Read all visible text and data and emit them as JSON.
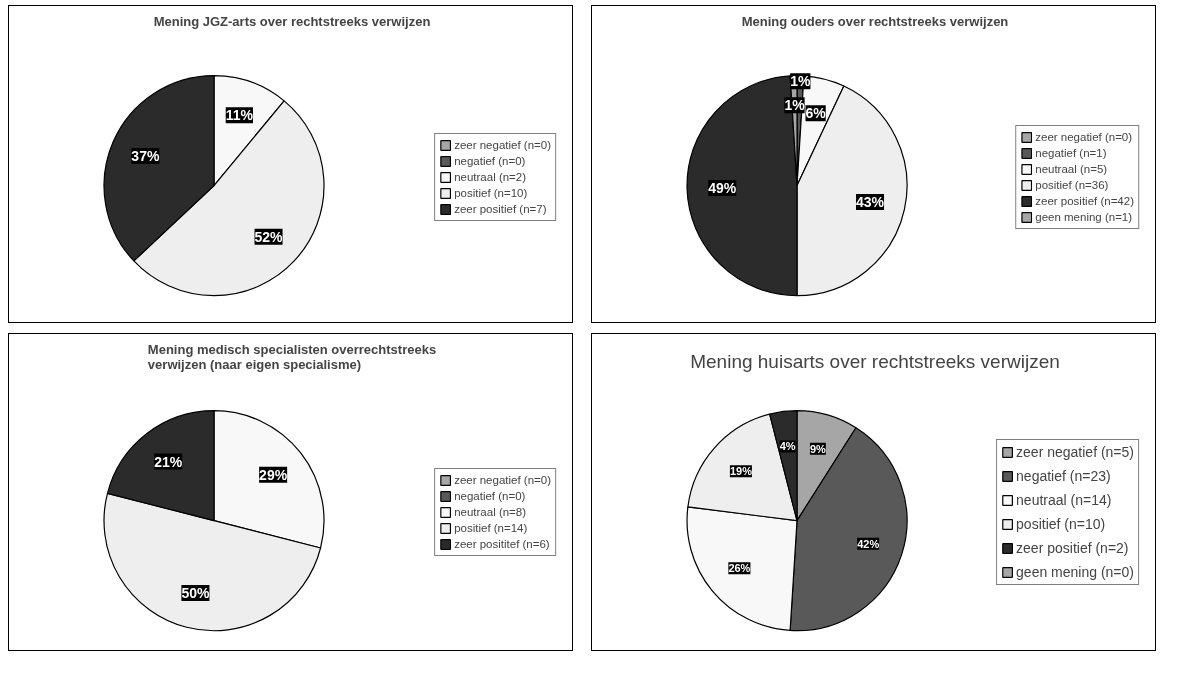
{
  "chart_data": [
    {
      "type": "pie",
      "title": "Mening JGZ-arts over rechtstreeks verwijzen",
      "categories": [
        "zeer negatief (n=0)",
        "negatief (n=0)",
        "neutraal (n=2)",
        "positief (n=10)",
        "zeer positief (n=7)"
      ],
      "values": [
        0,
        0,
        11,
        52,
        37
      ],
      "value_labels": [
        null,
        null,
        "11%",
        "52%",
        "37%"
      ],
      "colors": [
        "#a6a6a6",
        "#595959",
        "#f8f8f8",
        "#eeeeee",
        "#2b2b2b"
      ],
      "legend": "right"
    },
    {
      "type": "pie",
      "title": "Mening ouders over rechtstreeks verwijzen",
      "categories": [
        "zeer negatief (n=0)",
        "negatief (n=1)",
        "neutraal (n=5)",
        "positief (n=36)",
        "zeer positief (n=42)",
        "geen mening (n=1)"
      ],
      "values": [
        0,
        1,
        6,
        43,
        49,
        1
      ],
      "value_labels": [
        null,
        "1%",
        "6%",
        "43%",
        "49%",
        "1%"
      ],
      "colors": [
        "#a6a6a6",
        "#595959",
        "#f8f8f8",
        "#eeeeee",
        "#2b2b2b",
        "#a6a6a6"
      ],
      "legend": "right"
    },
    {
      "type": "pie",
      "title": "Mening medisch specialisten overrechtstreeks\nverwijzen (naar eigen specialisme)",
      "categories": [
        "zeer negatief (n=0)",
        "negatief (n=0)",
        "neutraal (n=8)",
        "positief (n=14)",
        "zeer posititef (n=6)"
      ],
      "values": [
        0,
        0,
        29,
        50,
        21
      ],
      "value_labels": [
        null,
        null,
        "29%",
        "50%",
        "21%"
      ],
      "colors": [
        "#a6a6a6",
        "#595959",
        "#f8f8f8",
        "#eeeeee",
        "#2b2b2b"
      ],
      "legend": "right"
    },
    {
      "type": "pie",
      "title": "Mening huisarts over rechtstreeks verwijzen",
      "categories": [
        "zeer negatief (n=5)",
        "negatief (n=23)",
        "neutraal (n=14)",
        "positief (n=10)",
        "zeer positief (n=2)",
        "geen mening (n=0)"
      ],
      "values": [
        9,
        42,
        26,
        19,
        4,
        0
      ],
      "value_labels": [
        "9%",
        "42%",
        "26%",
        "19%",
        "4%",
        null
      ],
      "colors": [
        "#a6a6a6",
        "#595959",
        "#f8f8f8",
        "#eeeeee",
        "#2b2b2b",
        "#a6a6a6"
      ],
      "legend": "right"
    }
  ]
}
